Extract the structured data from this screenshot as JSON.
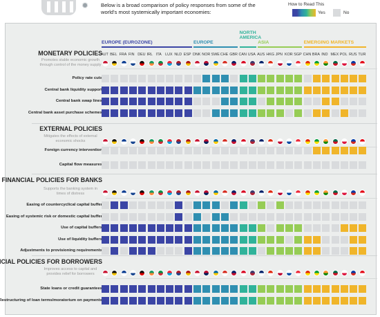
{
  "header": {
    "intro": "Below is a broad comparison of policy responses from some of the world's most systemically important economies:",
    "legend": {
      "title": "How to Read This",
      "yes": "Yes",
      "no": "No"
    }
  },
  "colors": {
    "EU": "#3b45a5",
    "EUR": "#2f8fb1",
    "NA": "#30b39a",
    "AS": "#96cc55",
    "EM": "#f0b52a",
    "no": "#d9dbdd"
  },
  "countries": [
    {
      "code": "AUT",
      "region": "EU"
    },
    {
      "code": "BEL",
      "region": "EU"
    },
    {
      "code": "FRA",
      "region": "EU"
    },
    {
      "code": "FIN",
      "region": "EU"
    },
    {
      "code": "DEU",
      "region": "EU"
    },
    {
      "code": "IRL",
      "region": "EU"
    },
    {
      "code": "ITA",
      "region": "EU"
    },
    {
      "code": "LUX",
      "region": "EU"
    },
    {
      "code": "NLD",
      "region": "EU"
    },
    {
      "code": "ESP",
      "region": "EU"
    },
    {
      "code": "DNK",
      "region": "EUR"
    },
    {
      "code": "NOR",
      "region": "EUR"
    },
    {
      "code": "SWE",
      "region": "EUR"
    },
    {
      "code": "CHE",
      "region": "EUR"
    },
    {
      "code": "GBR",
      "region": "EUR"
    },
    {
      "code": "CAN",
      "region": "NA"
    },
    {
      "code": "USA",
      "region": "NA"
    },
    {
      "code": "AUS",
      "region": "AS"
    },
    {
      "code": "HKG",
      "region": "AS"
    },
    {
      "code": "JPN",
      "region": "AS"
    },
    {
      "code": "KOR",
      "region": "AS"
    },
    {
      "code": "SGP",
      "region": "AS"
    },
    {
      "code": "CHN",
      "region": "EM"
    },
    {
      "code": "BRA",
      "region": "EM"
    },
    {
      "code": "IND",
      "region": "EM"
    },
    {
      "code": "MEX",
      "region": "EM"
    },
    {
      "code": "POL",
      "region": "EM"
    },
    {
      "code": "RUS",
      "region": "EM"
    },
    {
      "code": "TUR",
      "region": "EM"
    }
  ],
  "regions": [
    {
      "name": "EUROPE (EUROZONE)",
      "key": "EU"
    },
    {
      "name": "EUROPE",
      "key": "EUR"
    },
    {
      "name": "NORTH AMERICA",
      "key": "NA"
    },
    {
      "name": "ASIA",
      "key": "AS"
    },
    {
      "name": "EMERGING MARKETS",
      "key": "EM"
    }
  ],
  "sections": [
    {
      "title": "MONETARY POLICIES",
      "subtitle": "Promotes stable economic growth through control of the money supply",
      "rows": [
        {
          "label": "Policy rate cuts",
          "values": "00000000000111011111110111111"
        },
        {
          "label": "Central bank liquidity support",
          "values": "11111111111111111111111111111"
        },
        {
          "label": "Central bank swap lines",
          "values": "11111111110001111011110011000"
        },
        {
          "label": "Central bank asset purchase schemes",
          "values": "11111111110011111111010110100"
        }
      ]
    },
    {
      "title": "EXTERNAL POLICIES",
      "subtitle": "Mitigates the effects of external economic shocks",
      "rows": [
        {
          "label": "Foreign currency intervention",
          "values": "00000000000000000000000111111"
        },
        {
          "label": "Capital flow measures",
          "values": "00000000000000000000000000000"
        }
      ]
    },
    {
      "title": "FINANCIAL POLICIES FOR BANKS",
      "subtitle": "Supports the banking system in times of distress",
      "rows": [
        {
          "label": "Easing of countercyclical capital buffer",
          "values": "01100000101110110101000000000"
        },
        {
          "label": "Easing of systemic risk or domestic capital buffer",
          "values": "00000000101011000000000000000"
        },
        {
          "label": "Use of capital buffers",
          "values": "11111111111111111101110000111"
        },
        {
          "label": "Use of liquidity buffers",
          "values": "11111111111111111111011100011"
        },
        {
          "label": "Adjustments to provisioning requirements",
          "values": "01011100011111111011111100011"
        }
      ]
    },
    {
      "title": "FINANCIAL POLICIES FOR BORROWERS",
      "subtitle": "Improves access to capital and provides relief for borrowers",
      "rows": [
        {
          "label": "State loans or credit guarantees",
          "values": "11111111111111111111111111111"
        },
        {
          "label": "Restructuring of loan terms/moratorium on payments",
          "values": "11111111111111111111111111111"
        }
      ]
    }
  ]
}
